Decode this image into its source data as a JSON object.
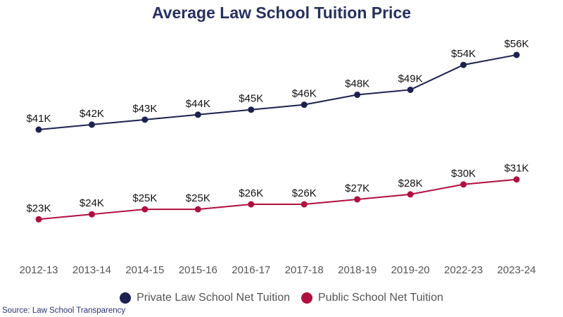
{
  "chart_data": {
    "type": "line",
    "title": "Average Law School Tuition Price",
    "categories": [
      "2012-13",
      "2013-14",
      "2014-15",
      "2015-16",
      "2016-17",
      "2017-18",
      "2018-19",
      "2019-20",
      "2022-23",
      "2023-24"
    ],
    "series": [
      {
        "name": "Private Law School Net Tuition",
        "color": "#1b2250",
        "values": [
          41,
          42,
          43,
          44,
          45,
          46,
          48,
          49,
          54,
          56
        ],
        "labels": [
          "$41K",
          "$42K",
          "$43K",
          "$44K",
          "$45K",
          "$46K",
          "$48K",
          "$49K",
          "$54K",
          "$56K"
        ]
      },
      {
        "name": "Public School Net Tuition",
        "color": "#b0103f",
        "values": [
          23,
          24,
          25,
          25,
          26,
          26,
          27,
          28,
          30,
          31
        ],
        "labels": [
          "$23K",
          "$24K",
          "$25K",
          "$25K",
          "$26K",
          "$26K",
          "$27K",
          "$28K",
          "$30K",
          "$31K"
        ]
      }
    ],
    "unit": "thousand USD",
    "grid": false,
    "y_axis_visible": false,
    "legend": "bottom"
  },
  "source": "Source: Law School Transparency"
}
